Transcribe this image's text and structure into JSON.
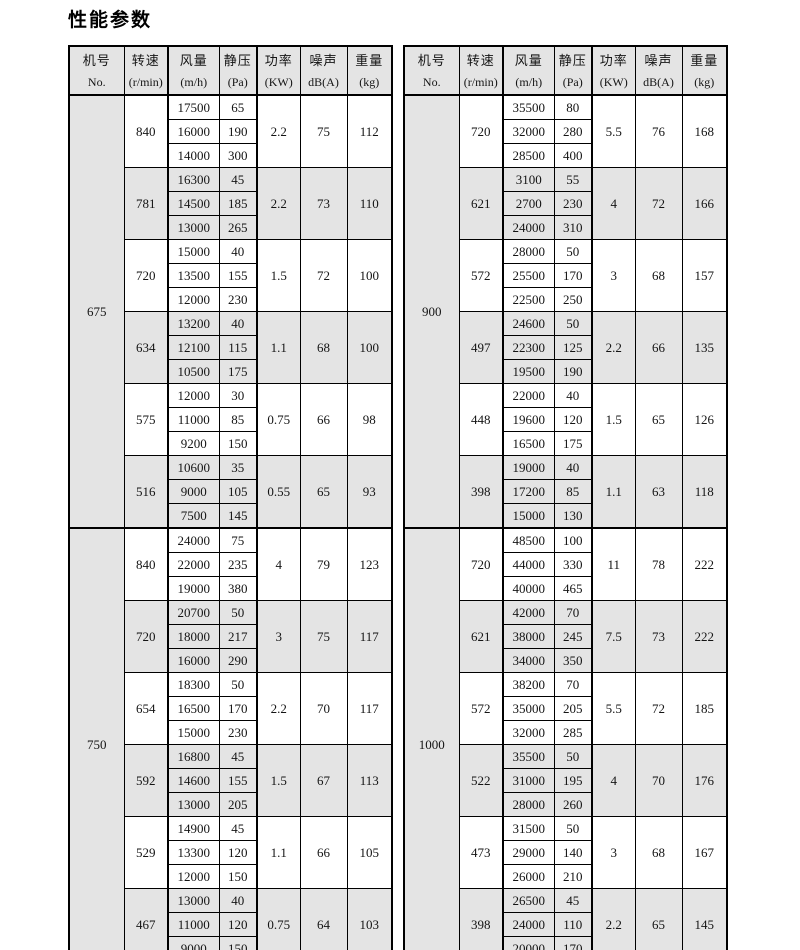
{
  "title": "性能参数",
  "colors": {
    "shade": "#e4e4e4",
    "border": "#000000",
    "text": "#141414",
    "page_bg": "#ffffff"
  },
  "header": [
    {
      "key": "no",
      "top": "机号",
      "bottom": "No."
    },
    {
      "key": "rpm",
      "top": "转速",
      "bottom": "(r/min)"
    },
    {
      "key": "flow",
      "top": "风量",
      "bottom": "(m/h)"
    },
    {
      "key": "pa",
      "top": "静压",
      "bottom": "(Pa)"
    },
    {
      "key": "kw",
      "top": "功率",
      "bottom": "(KW)"
    },
    {
      "key": "db",
      "top": "噪声",
      "bottom": "dB(A)"
    },
    {
      "key": "kg",
      "top": "重量",
      "bottom": "(kg)"
    }
  ],
  "tables": [
    {
      "name": "left",
      "sections": [
        {
          "no": "675",
          "groups": [
            {
              "rpm": "840",
              "rows": [
                [
                  "17500",
                  "65"
                ],
                [
                  "16000",
                  "190"
                ],
                [
                  "14000",
                  "300"
                ]
              ],
              "kw": "2.2",
              "db": "75",
              "kg": "112"
            },
            {
              "rpm": "781",
              "rows": [
                [
                  "16300",
                  "45"
                ],
                [
                  "14500",
                  "185"
                ],
                [
                  "13000",
                  "265"
                ]
              ],
              "kw": "2.2",
              "db": "73",
              "kg": "110"
            },
            {
              "rpm": "720",
              "rows": [
                [
                  "15000",
                  "40"
                ],
                [
                  "13500",
                  "155"
                ],
                [
                  "12000",
                  "230"
                ]
              ],
              "kw": "1.5",
              "db": "72",
              "kg": "100"
            },
            {
              "rpm": "634",
              "rows": [
                [
                  "13200",
                  "40"
                ],
                [
                  "12100",
                  "115"
                ],
                [
                  "10500",
                  "175"
                ]
              ],
              "kw": "1.1",
              "db": "68",
              "kg": "100"
            },
            {
              "rpm": "575",
              "rows": [
                [
                  "12000",
                  "30"
                ],
                [
                  "11000",
                  "85"
                ],
                [
                  "9200",
                  "150"
                ]
              ],
              "kw": "0.75",
              "db": "66",
              "kg": "98"
            },
            {
              "rpm": "516",
              "rows": [
                [
                  "10600",
                  "35"
                ],
                [
                  "9000",
                  "105"
                ],
                [
                  "7500",
                  "145"
                ]
              ],
              "kw": "0.55",
              "db": "65",
              "kg": "93"
            }
          ]
        },
        {
          "no": "750",
          "groups": [
            {
              "rpm": "840",
              "rows": [
                [
                  "24000",
                  "75"
                ],
                [
                  "22000",
                  "235"
                ],
                [
                  "19000",
                  "380"
                ]
              ],
              "kw": "4",
              "db": "79",
              "kg": "123"
            },
            {
              "rpm": "720",
              "rows": [
                [
                  "20700",
                  "50"
                ],
                [
                  "18000",
                  "217"
                ],
                [
                  "16000",
                  "290"
                ]
              ],
              "kw": "3",
              "db": "75",
              "kg": "117"
            },
            {
              "rpm": "654",
              "rows": [
                [
                  "18300",
                  "50"
                ],
                [
                  "16500",
                  "170"
                ],
                [
                  "15000",
                  "230"
                ]
              ],
              "kw": "2.2",
              "db": "70",
              "kg": "117"
            },
            {
              "rpm": "592",
              "rows": [
                [
                  "16800",
                  "45"
                ],
                [
                  "14600",
                  "155"
                ],
                [
                  "13000",
                  "205"
                ]
              ],
              "kw": "1.5",
              "db": "67",
              "kg": "113"
            },
            {
              "rpm": "529",
              "rows": [
                [
                  "14900",
                  "45"
                ],
                [
                  "13300",
                  "120"
                ],
                [
                  "12000",
                  "150"
                ]
              ],
              "kw": "1.1",
              "db": "66",
              "kg": "105"
            },
            {
              "rpm": "467",
              "rows": [
                [
                  "13000",
                  "40"
                ],
                [
                  "11000",
                  "120"
                ],
                [
                  "9000",
                  "150"
                ]
              ],
              "kw": "0.75",
              "db": "64",
              "kg": "103"
            }
          ]
        }
      ]
    },
    {
      "name": "right",
      "sections": [
        {
          "no": "900",
          "groups": [
            {
              "rpm": "720",
              "rows": [
                [
                  "35500",
                  "80"
                ],
                [
                  "32000",
                  "280"
                ],
                [
                  "28500",
                  "400"
                ]
              ],
              "kw": "5.5",
              "db": "76",
              "kg": "168"
            },
            {
              "rpm": "621",
              "rows": [
                [
                  "3100",
                  "55"
                ],
                [
                  "2700",
                  "230"
                ],
                [
                  "24000",
                  "310"
                ]
              ],
              "kw": "4",
              "db": "72",
              "kg": "166"
            },
            {
              "rpm": "572",
              "rows": [
                [
                  "28000",
                  "50"
                ],
                [
                  "25500",
                  "170"
                ],
                [
                  "22500",
                  "250"
                ]
              ],
              "kw": "3",
              "db": "68",
              "kg": "157"
            },
            {
              "rpm": "497",
              "rows": [
                [
                  "24600",
                  "50"
                ],
                [
                  "22300",
                  "125"
                ],
                [
                  "19500",
                  "190"
                ]
              ],
              "kw": "2.2",
              "db": "66",
              "kg": "135"
            },
            {
              "rpm": "448",
              "rows": [
                [
                  "22000",
                  "40"
                ],
                [
                  "19600",
                  "120"
                ],
                [
                  "16500",
                  "175"
                ]
              ],
              "kw": "1.5",
              "db": "65",
              "kg": "126"
            },
            {
              "rpm": "398",
              "rows": [
                [
                  "19000",
                  "40"
                ],
                [
                  "17200",
                  "85"
                ],
                [
                  "15000",
                  "130"
                ]
              ],
              "kw": "1.1",
              "db": "63",
              "kg": "118"
            }
          ]
        },
        {
          "no": "1000",
          "groups": [
            {
              "rpm": "720",
              "rows": [
                [
                  "48500",
                  "100"
                ],
                [
                  "44000",
                  "330"
                ],
                [
                  "40000",
                  "465"
                ]
              ],
              "kw": "11",
              "db": "78",
              "kg": "222"
            },
            {
              "rpm": "621",
              "rows": [
                [
                  "42000",
                  "70"
                ],
                [
                  "38000",
                  "245"
                ],
                [
                  "34000",
                  "350"
                ]
              ],
              "kw": "7.5",
              "db": "73",
              "kg": "222"
            },
            {
              "rpm": "572",
              "rows": [
                [
                  "38200",
                  "70"
                ],
                [
                  "35000",
                  "205"
                ],
                [
                  "32000",
                  "285"
                ]
              ],
              "kw": "5.5",
              "db": "72",
              "kg": "185"
            },
            {
              "rpm": "522",
              "rows": [
                [
                  "35500",
                  "50"
                ],
                [
                  "31000",
                  "195"
                ],
                [
                  "28000",
                  "260"
                ]
              ],
              "kw": "4",
              "db": "70",
              "kg": "176"
            },
            {
              "rpm": "473",
              "rows": [
                [
                  "31500",
                  "50"
                ],
                [
                  "29000",
                  "140"
                ],
                [
                  "26000",
                  "210"
                ]
              ],
              "kw": "3",
              "db": "68",
              "kg": "167"
            },
            {
              "rpm": "398",
              "rows": [
                [
                  "26500",
                  "45"
                ],
                [
                  "24000",
                  "110"
                ],
                [
                  "20000",
                  "170"
                ]
              ],
              "kw": "2.2",
              "db": "65",
              "kg": "145"
            }
          ]
        }
      ]
    }
  ]
}
